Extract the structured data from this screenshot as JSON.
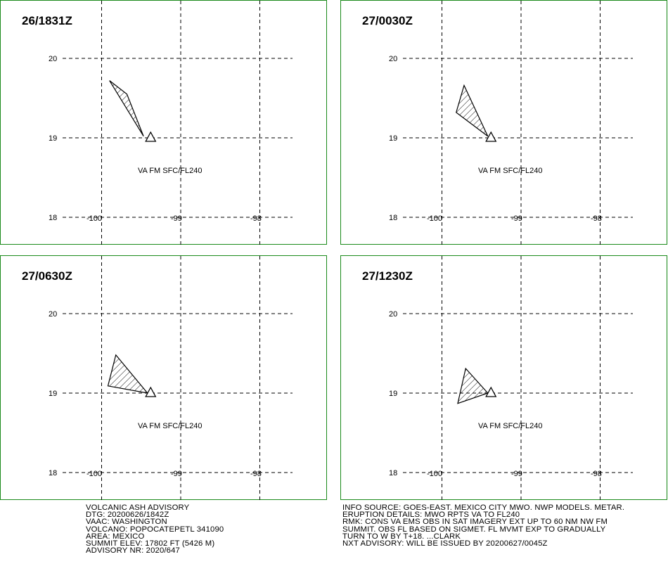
{
  "colors": {
    "panel_border": "#1a8a1a",
    "plume": "#000000"
  },
  "axis": {
    "lat_labels": [
      "20",
      "19",
      "18"
    ],
    "lon_labels": [
      "-100",
      "-99",
      "-98"
    ]
  },
  "panels": [
    {
      "id": "p1",
      "time": "26/1831Z",
      "label": "VA FM SFC/FL240",
      "plume": [
        [
          -99.47,
          19.02
        ],
        [
          -99.68,
          19.55
        ],
        [
          -99.9,
          19.72
        ]
      ]
    },
    {
      "id": "p2",
      "time": "27/0030Z",
      "label": "VA FM SFC/FL240",
      "plume": [
        [
          -99.42,
          19.02
        ],
        [
          -99.72,
          19.66
        ],
        [
          -99.82,
          19.32
        ]
      ]
    },
    {
      "id": "p3",
      "time": "27/0630Z",
      "label": "VA FM SFC/FL240",
      "plume": [
        [
          -99.42,
          19.0
        ],
        [
          -99.92,
          19.09
        ],
        [
          -99.82,
          19.48
        ]
      ]
    },
    {
      "id": "p4",
      "time": "27/1230Z",
      "label": "VA FM SFC/FL240",
      "plume": [
        [
          -99.42,
          19.0
        ],
        [
          -99.7,
          19.31
        ],
        [
          -99.8,
          18.87
        ]
      ]
    }
  ],
  "advisory_left": [
    "VOLCANIC ASH ADVISORY",
    "DTG: 20200626/1842Z",
    "VAAC: WASHINGTON",
    "VOLCANO: POPOCATEPETL 341090",
    "AREA: MEXICO",
    "SUMMIT ELEV: 17802 FT (5426 M)",
    "ADVISORY NR: 2020/647"
  ],
  "advisory_right": [
    "INFO SOURCE: GOES-EAST. MEXICO CITY MWO. NWP MODELS. METAR.",
    "ERUPTION DETAILS: MWO RPTS VA TO FL240",
    "RMK: CONS VA EMS OBS IN SAT IMAGERY EXT UP TO 60 NM NW FM",
    "SUMMIT. OBS FL BASED ON SIGMET. FL MVMT EXP TO GRADUALLY",
    "TURN TO W BY T+18. ...CLARK",
    "NXT ADVISORY: WILL BE ISSUED BY 20200627/0045Z"
  ],
  "volcano": {
    "lon": -99.38,
    "lat": 19.0,
    "marker": "triangle-icon"
  }
}
